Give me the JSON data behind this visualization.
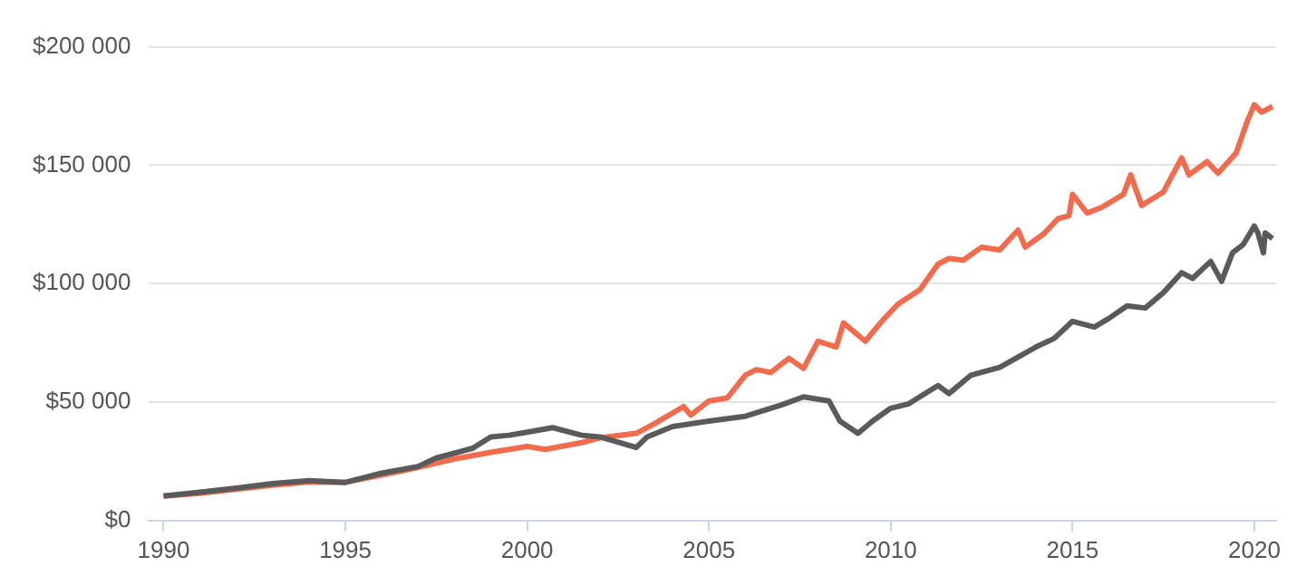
{
  "chart_data": {
    "type": "line",
    "xlim": [
      1989.6,
      2020.6
    ],
    "xticks": [
      1990,
      1995,
      2000,
      2005,
      2010,
      2015,
      2020
    ],
    "ylim": [
      0,
      200000
    ],
    "yticks": [
      {
        "value": 0,
        "label": "$0"
      },
      {
        "value": 50000,
        "label": "$50 000"
      },
      {
        "value": 100000,
        "label": "$100 000"
      },
      {
        "value": 150000,
        "label": "$150 000"
      },
      {
        "value": 200000,
        "label": "$200 000"
      }
    ],
    "grid": "y",
    "marker": "none",
    "line_style": "solid",
    "series": [
      {
        "color": "#5a5a5a",
        "x": [
          1990,
          1991,
          1992,
          1993,
          1994,
          1995,
          1996,
          1997,
          1997.5,
          1998.5,
          1999,
          1999.5,
          2000,
          2000.7,
          2001.5,
          2002,
          2003,
          2003.3,
          2004,
          2005,
          2006,
          2007,
          2007.6,
          2008.3,
          2008.6,
          2009.1,
          2009.5,
          2010,
          2010.5,
          2011.3,
          2011.6,
          2012.2,
          2013,
          2013.5,
          2014,
          2014.5,
          2015,
          2015.6,
          2016,
          2016.5,
          2017,
          2017.5,
          2018,
          2018.3,
          2018.8,
          2019.1,
          2019.4,
          2019.7,
          2020,
          2020.1,
          2020.25,
          2020.3,
          2020.5
        ],
        "values": [
          10300,
          12000,
          13700,
          15600,
          16800,
          16100,
          20000,
          22800,
          26400,
          30500,
          35300,
          36000,
          37300,
          39200,
          36000,
          35300,
          30800,
          35300,
          39700,
          42000,
          44000,
          48800,
          52200,
          50500,
          42000,
          36800,
          42000,
          47400,
          49300,
          57000,
          53600,
          61300,
          64700,
          69000,
          73300,
          76900,
          84100,
          81700,
          85300,
          90600,
          89700,
          96200,
          104600,
          102200,
          109400,
          101000,
          113000,
          116600,
          124300,
          121400,
          113000,
          121400,
          119000
        ]
      },
      {
        "color": "#f26b4c",
        "x": [
          1990,
          1991,
          1992,
          1993,
          1994,
          1995,
          1996,
          1997,
          1998,
          1999,
          2000,
          2000.5,
          2001.5,
          2002,
          2003,
          2003.5,
          2004.3,
          2004.5,
          2005,
          2005.5,
          2006,
          2006.3,
          2006.7,
          2007.2,
          2007.6,
          2008,
          2008.5,
          2008.7,
          2009.3,
          2009.8,
          2010.2,
          2010.8,
          2011.3,
          2011.6,
          2012,
          2012.5,
          2013,
          2013.5,
          2013.7,
          2014.2,
          2014.6,
          2014.9,
          2015,
          2015.4,
          2015.8,
          2016.4,
          2016.6,
          2016.9,
          2017.5,
          2018,
          2018.2,
          2018.7,
          2019,
          2019.5,
          2019.8,
          2020,
          2020.2,
          2020.5
        ],
        "values": [
          10300,
          11500,
          13200,
          14900,
          16300,
          16100,
          19200,
          22400,
          26000,
          28800,
          31300,
          30000,
          32900,
          34900,
          36800,
          40900,
          48100,
          44500,
          50500,
          51700,
          61300,
          63700,
          62500,
          68500,
          64200,
          75700,
          73300,
          83400,
          75700,
          84900,
          91400,
          97400,
          108200,
          110600,
          109900,
          115400,
          114200,
          122600,
          115400,
          120900,
          127400,
          128600,
          137700,
          129800,
          132200,
          137700,
          145900,
          133000,
          138700,
          153100,
          145900,
          151500,
          146600,
          155100,
          168300,
          175500,
          172400,
          174800
        ]
      }
    ]
  }
}
